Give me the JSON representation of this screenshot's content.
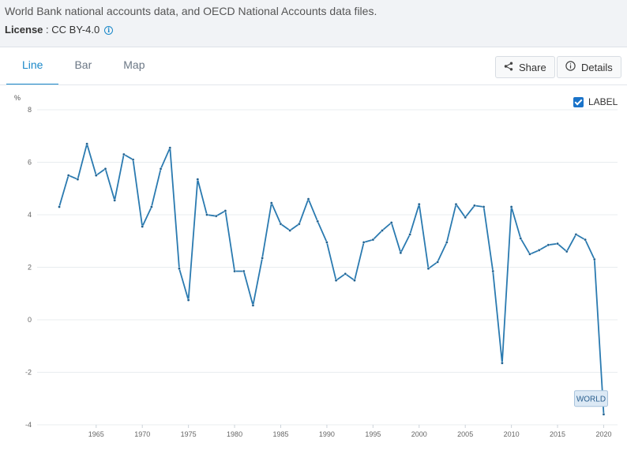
{
  "source_text": "World Bank national accounts data, and OECD National Accounts data files.",
  "license": {
    "label": "License",
    "separator": " : ",
    "value": "CC BY-4.0"
  },
  "tabs": [
    {
      "label": "Line",
      "active": true
    },
    {
      "label": "Bar",
      "active": false
    },
    {
      "label": "Map",
      "active": false
    }
  ],
  "buttons": {
    "share": "Share",
    "details": "Details"
  },
  "label_toggle": {
    "label": "LABEL",
    "checked": true
  },
  "colors": {
    "accent": "#1a88c9",
    "line": "#2a7ab0",
    "grid": "#e8ecef"
  },
  "chart_data": {
    "type": "line",
    "ylabel": "%",
    "ylim": [
      -4,
      8
    ],
    "yticks": [
      8,
      6,
      4,
      2,
      0,
      -2,
      -4
    ],
    "xticks": [
      1965,
      1970,
      1975,
      1980,
      1985,
      1990,
      1995,
      2000,
      2005,
      2010,
      2015,
      2020
    ],
    "grid": true,
    "series": [
      {
        "name": "WORLD",
        "x": [
          1961,
          1962,
          1963,
          1964,
          1965,
          1966,
          1967,
          1968,
          1969,
          1970,
          1971,
          1972,
          1973,
          1974,
          1975,
          1976,
          1977,
          1978,
          1979,
          1980,
          1981,
          1982,
          1983,
          1984,
          1985,
          1986,
          1987,
          1988,
          1989,
          1990,
          1991,
          1992,
          1993,
          1994,
          1995,
          1996,
          1997,
          1998,
          1999,
          2000,
          2001,
          2002,
          2003,
          2004,
          2005,
          2006,
          2007,
          2008,
          2009,
          2010,
          2011,
          2012,
          2013,
          2014,
          2015,
          2016,
          2017,
          2018,
          2019,
          2020
        ],
        "values": [
          4.3,
          5.5,
          5.35,
          6.7,
          5.5,
          5.75,
          4.55,
          6.3,
          6.1,
          3.55,
          4.3,
          5.75,
          6.55,
          1.95,
          0.75,
          5.35,
          4.0,
          3.95,
          4.15,
          1.85,
          1.85,
          0.55,
          2.35,
          4.45,
          3.65,
          3.4,
          3.65,
          4.6,
          3.75,
          2.95,
          1.5,
          1.75,
          1.5,
          2.95,
          3.05,
          3.4,
          3.7,
          2.55,
          3.25,
          4.4,
          1.95,
          2.2,
          2.95,
          4.4,
          3.9,
          4.35,
          4.3,
          1.85,
          -1.65,
          4.3,
          3.1,
          2.5,
          2.65,
          2.85,
          2.9,
          2.6,
          3.25,
          3.05,
          2.3,
          -3.6
        ]
      }
    ],
    "end_label": "WORLD"
  }
}
